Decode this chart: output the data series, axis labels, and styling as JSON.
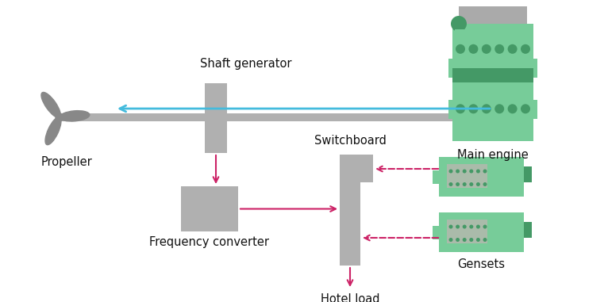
{
  "bg_color": "#ffffff",
  "shaft_color": "#b0b0b0",
  "box_color": "#b0b0b0",
  "arrow_color": "#cc2266",
  "blue_arrow_color": "#44bbdd",
  "engine_green_light": "#77cc99",
  "engine_green_dark": "#449966",
  "engine_gray_top": "#aaaaaa",
  "text_color": "#111111",
  "labels": {
    "shaft_generator": "Shaft generator",
    "main_engine": "Main engine",
    "propeller": "Propeller",
    "frequency_converter": "Frequency converter",
    "switchboard": "Switchboard",
    "hotel_load": "Hotel load",
    "gensets": "Gensets"
  },
  "figsize": [
    7.66,
    3.81
  ],
  "dpi": 100
}
